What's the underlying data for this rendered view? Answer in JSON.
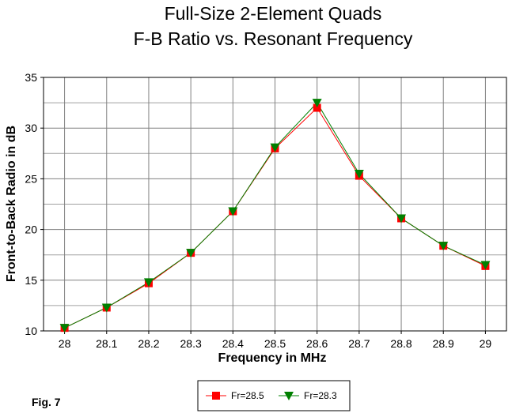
{
  "chart_data": {
    "type": "line",
    "title": "Full-Size 2-Element Quads",
    "subtitle": "F-B Ratio vs. Resonant Frequency",
    "xlabel": "Frequency in MHz",
    "ylabel": "Front-to-Back Radio in dB",
    "x": [
      28,
      28.1,
      28.2,
      28.3,
      28.4,
      28.5,
      28.6,
      28.7,
      28.8,
      28.9,
      29
    ],
    "x_tick_labels": [
      "28",
      "28.1",
      "28.2",
      "28.3",
      "28.4",
      "28.5",
      "28.6",
      "28.7",
      "28.8",
      "28.9",
      "29"
    ],
    "xlim": [
      27.95,
      29.05
    ],
    "ylim": [
      10,
      35
    ],
    "y_ticks": [
      10,
      15,
      20,
      25,
      30,
      35
    ],
    "grid": true,
    "legend_position": "bottom-center",
    "series": [
      {
        "name": "Fr=28.5",
        "color": "#ff0000",
        "marker": "square",
        "values": [
          10.3,
          12.3,
          14.7,
          17.7,
          21.8,
          28.0,
          32.0,
          25.3,
          21.1,
          18.4,
          16.4
        ]
      },
      {
        "name": "Fr=28.3",
        "color": "#008000",
        "marker": "triangle-down",
        "values": [
          10.3,
          12.3,
          14.8,
          17.7,
          21.8,
          28.1,
          32.5,
          25.5,
          21.1,
          18.4,
          16.5
        ]
      }
    ]
  },
  "figure_label": "Fig. 7"
}
